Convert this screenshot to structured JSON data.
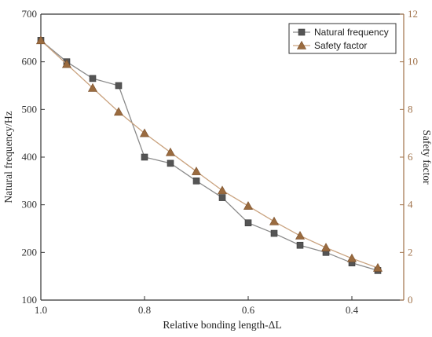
{
  "chart_data": {
    "type": "line",
    "title": "",
    "xlabel": "Relative bonding length-ΔL",
    "ylabel": "Natural frequency/Hz",
    "y2label": "Safety factor",
    "xlim": [
      1.0,
      0.3
    ],
    "ylim": [
      100,
      700
    ],
    "y2lim": [
      0,
      12
    ],
    "x_ticks": [
      1.0,
      0.8,
      0.6,
      0.4
    ],
    "x_tick_labels": [
      "1.0",
      "0.8",
      "0.6",
      "0.4"
    ],
    "y_ticks": [
      100,
      200,
      300,
      400,
      500,
      600,
      700
    ],
    "y2_ticks": [
      0,
      2,
      4,
      6,
      8,
      10,
      12
    ],
    "grid": false,
    "legend_position": "top-right",
    "series": [
      {
        "name": "Natural frequency",
        "axis": "left",
        "marker": "square",
        "color": "#555555",
        "x": [
          1.0,
          0.95,
          0.9,
          0.85,
          0.8,
          0.75,
          0.7,
          0.65,
          0.6,
          0.55,
          0.5,
          0.45,
          0.4,
          0.35
        ],
        "values": [
          645,
          600,
          565,
          550,
          400,
          387,
          350,
          315,
          262,
          240,
          215,
          200,
          178,
          162
        ]
      },
      {
        "name": "Safety factor",
        "axis": "right",
        "marker": "triangle",
        "color": "#9a6b3f",
        "x": [
          1.0,
          0.95,
          0.9,
          0.85,
          0.8,
          0.75,
          0.7,
          0.65,
          0.6,
          0.55,
          0.5,
          0.45,
          0.4,
          0.35
        ],
        "values": [
          10.9,
          9.9,
          8.9,
          7.9,
          7.0,
          6.2,
          5.4,
          4.6,
          3.95,
          3.3,
          2.7,
          2.2,
          1.75,
          1.35
        ]
      }
    ]
  }
}
